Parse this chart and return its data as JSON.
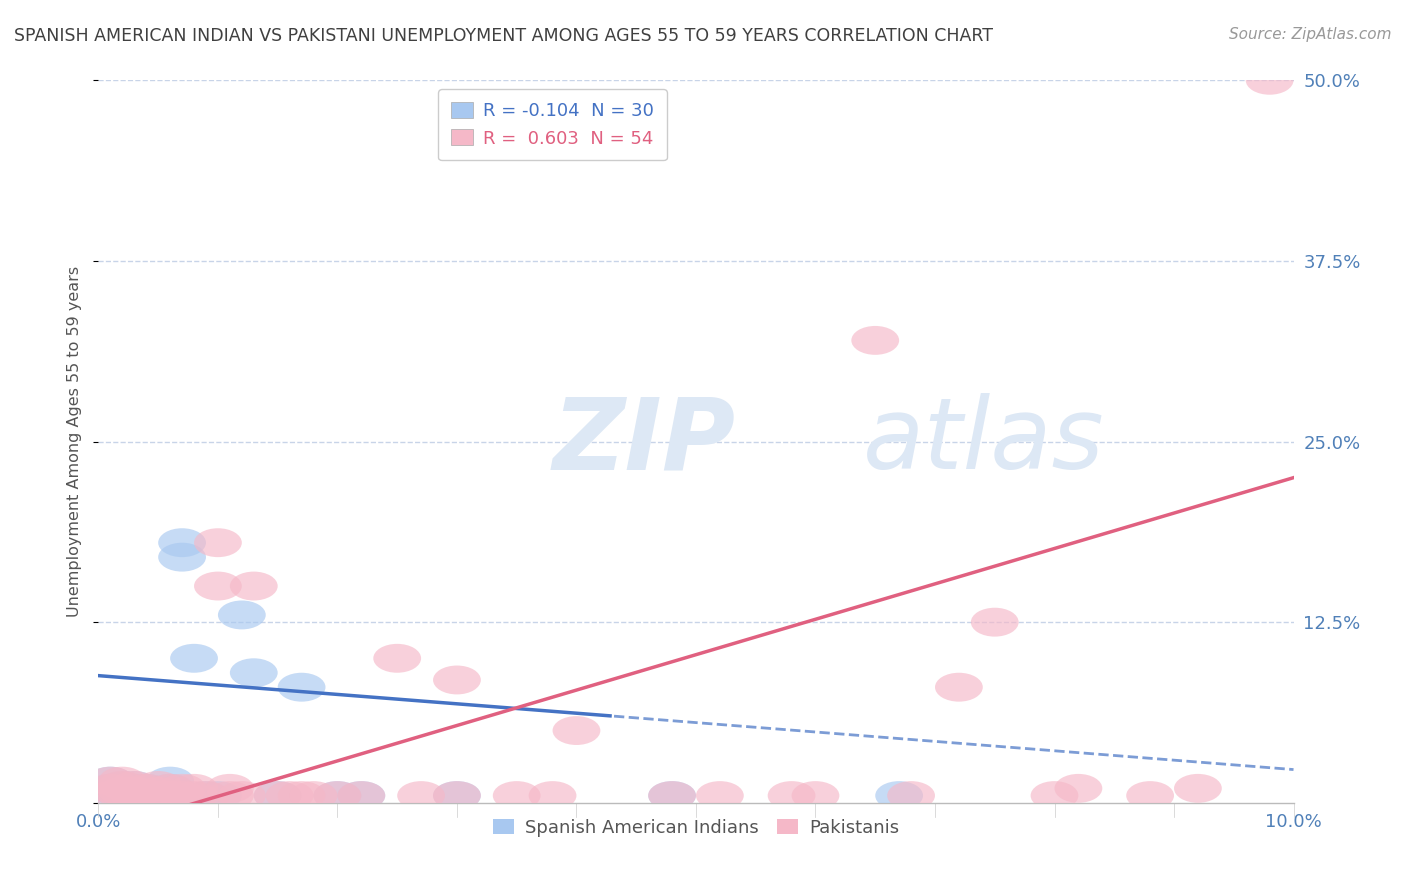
{
  "title": "SPANISH AMERICAN INDIAN VS PAKISTANI UNEMPLOYMENT AMONG AGES 55 TO 59 YEARS CORRELATION CHART",
  "source": "Source: ZipAtlas.com",
  "ylabel": "Unemployment Among Ages 55 to 59 years",
  "xlim": [
    0.0,
    0.1
  ],
  "ylim": [
    0.0,
    0.5
  ],
  "yticks": [
    0.0,
    0.125,
    0.25,
    0.375,
    0.5
  ],
  "ytick_labels": [
    "",
    "12.5%",
    "25.0%",
    "37.5%",
    "50.0%"
  ],
  "legend1_label": "R = -0.104  N = 30",
  "legend2_label": "R =  0.603  N = 54",
  "legend_series": [
    "Spanish American Indians",
    "Pakistanis"
  ],
  "blue_color": "#a8c8f0",
  "pink_color": "#f5b8c8",
  "blue_line_color": "#4472c4",
  "pink_line_color": "#e06080",
  "title_color": "#404040",
  "axis_color": "#5080b8",
  "grid_color": "#c8d4e8",
  "watermark_color": "#dde8f5",
  "blue_R": -0.104,
  "pink_R": 0.603,
  "blue_points_x": [
    0.001,
    0.001,
    0.001,
    0.002,
    0.002,
    0.002,
    0.003,
    0.003,
    0.003,
    0.004,
    0.004,
    0.005,
    0.005,
    0.006,
    0.006,
    0.006,
    0.007,
    0.007,
    0.008,
    0.009,
    0.01,
    0.012,
    0.013,
    0.015,
    0.017,
    0.02,
    0.022,
    0.03,
    0.048,
    0.067
  ],
  "blue_points_y": [
    0.005,
    0.01,
    0.015,
    0.005,
    0.008,
    0.012,
    0.005,
    0.008,
    0.012,
    0.005,
    0.01,
    0.005,
    0.008,
    0.005,
    0.01,
    0.015,
    0.17,
    0.18,
    0.1,
    0.005,
    0.005,
    0.13,
    0.09,
    0.005,
    0.08,
    0.005,
    0.005,
    0.005,
    0.005,
    0.005
  ],
  "pink_points_x": [
    0.001,
    0.001,
    0.001,
    0.002,
    0.002,
    0.002,
    0.002,
    0.003,
    0.003,
    0.003,
    0.004,
    0.004,
    0.005,
    0.005,
    0.005,
    0.006,
    0.006,
    0.007,
    0.007,
    0.008,
    0.008,
    0.009,
    0.01,
    0.01,
    0.011,
    0.011,
    0.012,
    0.013,
    0.015,
    0.016,
    0.017,
    0.018,
    0.02,
    0.022,
    0.025,
    0.027,
    0.03,
    0.03,
    0.035,
    0.038,
    0.04,
    0.048,
    0.052,
    0.058,
    0.06,
    0.065,
    0.068,
    0.072,
    0.075,
    0.08,
    0.082,
    0.088,
    0.092,
    0.098
  ],
  "pink_points_y": [
    0.005,
    0.01,
    0.015,
    0.005,
    0.008,
    0.012,
    0.015,
    0.005,
    0.008,
    0.012,
    0.005,
    0.01,
    0.005,
    0.008,
    0.012,
    0.005,
    0.01,
    0.005,
    0.01,
    0.005,
    0.01,
    0.005,
    0.15,
    0.18,
    0.005,
    0.01,
    0.005,
    0.15,
    0.005,
    0.005,
    0.005,
    0.005,
    0.005,
    0.005,
    0.1,
    0.005,
    0.085,
    0.005,
    0.005,
    0.005,
    0.05,
    0.005,
    0.005,
    0.005,
    0.005,
    0.32,
    0.005,
    0.08,
    0.125,
    0.005,
    0.01,
    0.005,
    0.01,
    0.5
  ],
  "blue_line_x": [
    0.0,
    0.043,
    0.043,
    0.1
  ],
  "blue_line_style": [
    "solid",
    "dashed"
  ],
  "blue_intercept": 0.088,
  "blue_slope": -0.65,
  "pink_intercept": -0.02,
  "pink_slope": 2.45
}
